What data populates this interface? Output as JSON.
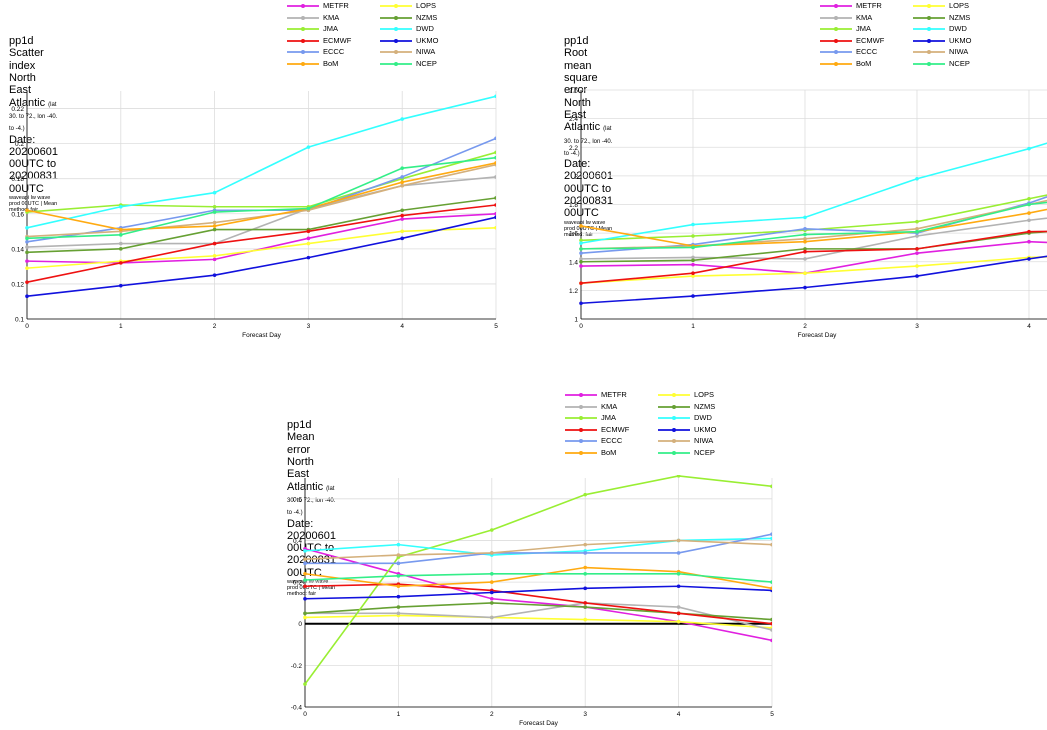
{
  "legend_series": [
    {
      "name": "METFR",
      "color": "#e020e0"
    },
    {
      "name": "LOPS",
      "color": "#ffff33"
    },
    {
      "name": "KMA",
      "color": "#b3b3b3"
    },
    {
      "name": "NZMS",
      "color": "#66a033"
    },
    {
      "name": "JMA",
      "color": "#99ee33"
    },
    {
      "name": "DWD",
      "color": "#33ffff"
    },
    {
      "name": "ECMWF",
      "color": "#ee1111"
    },
    {
      "name": "UKMO",
      "color": "#1111dd"
    },
    {
      "name": "ECCC",
      "color": "#7799ee"
    },
    {
      "name": "NIWA",
      "color": "#d4b07c"
    },
    {
      "name": "BoM",
      "color": "#ffaa11"
    },
    {
      "name": "NCEP",
      "color": "#33ee88"
    }
  ],
  "panels": [
    {
      "header": {
        "line1": "pp1d",
        "line2": "Scatter index",
        "line3_main": "North East Atlantic",
        "line3_small": "(lat 30. to 72., lon -40. to -4.)",
        "line4": "Date: 20200601 00UTC to 20200831 00UTC",
        "line5": "waveapi lw wave prod 00UTC | Mean method: fair"
      },
      "chart_data": {
        "type": "line",
        "xlabel": "Forecast Day",
        "ylabel": "",
        "x": [
          0,
          1,
          2,
          3,
          4,
          5
        ],
        "xlim": [
          0,
          5
        ],
        "ylim": [
          0.1,
          0.23
        ],
        "yticks": [
          0.1,
          0.12,
          0.14,
          0.16,
          0.18,
          0.2,
          0.22
        ],
        "ytick_labels": [
          "0.1",
          "0.12",
          "0.14",
          "0.16",
          "0.18",
          "0.2",
          "0.22"
        ],
        "xticks": [
          0,
          1,
          2,
          3,
          4,
          5
        ],
        "xtick_labels": [
          "0",
          "1",
          "2",
          "3",
          "4",
          "5"
        ],
        "grid": true,
        "series": [
          {
            "name": "METFR",
            "values": [
              0.133,
              0.132,
              0.134,
              0.146,
              0.157,
              0.16
            ]
          },
          {
            "name": "LOPS",
            "values": [
              0.129,
              0.133,
              0.136,
              0.143,
              0.15,
              0.152
            ]
          },
          {
            "name": "KMA",
            "values": [
              0.141,
              0.143,
              0.143,
              0.163,
              0.176,
              0.181
            ]
          },
          {
            "name": "NZMS",
            "values": [
              0.138,
              0.14,
              0.151,
              0.151,
              0.162,
              0.169
            ]
          },
          {
            "name": "JMA",
            "values": [
              0.161,
              0.165,
              0.164,
              0.164,
              0.18,
              0.195
            ]
          },
          {
            "name": "DWD",
            "values": [
              0.152,
              0.164,
              0.172,
              0.198,
              0.214,
              0.227
            ]
          },
          {
            "name": "ECMWF",
            "values": [
              0.121,
              0.132,
              0.143,
              0.15,
              0.159,
              0.165
            ]
          },
          {
            "name": "UKMO",
            "values": [
              0.113,
              0.119,
              0.125,
              0.135,
              0.146,
              0.158
            ]
          },
          {
            "name": "ECCC",
            "values": [
              0.144,
              0.152,
              0.162,
              0.162,
              0.181,
              0.203
            ]
          },
          {
            "name": "NIWA",
            "values": [
              0.147,
              0.15,
              0.155,
              0.162,
              0.176,
              0.188
            ]
          },
          {
            "name": "BoM",
            "values": [
              0.162,
              0.151,
              0.153,
              0.163,
              0.178,
              0.189
            ]
          },
          {
            "name": "NCEP",
            "values": [
              0.146,
              0.148,
              0.161,
              0.163,
              0.186,
              0.192
            ]
          }
        ]
      }
    },
    {
      "header": {
        "line1": "pp1d",
        "line2": "Root mean square error",
        "line3_main": "North East Atlantic",
        "line3_small": "(lat 30. to 72., lon -40. to -4.)",
        "line4": "Date: 20200601 00UTC to 20200831 00UTC",
        "line5": "waveapi lw wave prod 00UTC | Mean method: fair"
      },
      "chart_data": {
        "type": "line",
        "xlabel": "Forecast Day",
        "ylabel": "",
        "x": [
          0,
          1,
          2,
          3,
          4,
          5
        ],
        "xlim": [
          0,
          5
        ],
        "ylim": [
          1,
          2.6
        ],
        "yticks": [
          1,
          1.2,
          1.4,
          1.6,
          1.8,
          2,
          2.2,
          2.4,
          2.6
        ],
        "ytick_labels": [
          "1",
          "1.2",
          "1.4",
          "1.6",
          "1.8",
          "2",
          "2.2",
          "2.4",
          "2.6"
        ],
        "xticks": [
          0,
          1,
          2,
          3,
          4
        ],
        "xtick_labels": [
          "0",
          "1",
          "2",
          "3",
          "4"
        ],
        "grid": true,
        "series": [
          {
            "name": "METFR",
            "values": [
              1.37,
              1.38,
              1.32,
              1.46,
              1.54,
              1.51
            ]
          },
          {
            "name": "LOPS",
            "values": [
              1.25,
              1.3,
              1.32,
              1.37,
              1.43,
              1.46
            ]
          },
          {
            "name": "KMA",
            "values": [
              1.42,
              1.43,
              1.42,
              1.58,
              1.69,
              1.78
            ]
          },
          {
            "name": "NZMS",
            "values": [
              1.4,
              1.41,
              1.49,
              1.49,
              1.6,
              1.66
            ]
          },
          {
            "name": "JMA",
            "values": [
              1.55,
              1.58,
              1.62,
              1.68,
              1.84,
              2.0
            ]
          },
          {
            "name": "DWD",
            "values": [
              1.53,
              1.66,
              1.71,
              1.98,
              2.19,
              2.43
            ]
          },
          {
            "name": "ECMWF",
            "values": [
              1.25,
              1.32,
              1.47,
              1.49,
              1.61,
              1.62
            ]
          },
          {
            "name": "UKMO",
            "values": [
              1.11,
              1.16,
              1.22,
              1.3,
              1.42,
              1.53
            ]
          },
          {
            "name": "ECCC",
            "values": [
              1.46,
              1.52,
              1.63,
              1.6,
              1.81,
              2.08
            ]
          },
          {
            "name": "NIWA",
            "values": [
              1.49,
              1.51,
              1.56,
              1.63,
              1.8,
              1.97
            ]
          },
          {
            "name": "BoM",
            "values": [
              1.65,
              1.51,
              1.54,
              1.61,
              1.74,
              1.9
            ]
          },
          {
            "name": "NCEP",
            "values": [
              1.49,
              1.5,
              1.59,
              1.61,
              1.8,
              1.89
            ]
          }
        ]
      }
    },
    {
      "header": {
        "line1": "pp1d",
        "line2": "Mean error",
        "line3_main": "North East Atlantic",
        "line3_small": "(lat 30. to 72., lon -40. to -4.)",
        "line4": "Date: 20200601 00UTC to 20200831 00UTC",
        "line5": "waveapi lw wave prod 00UTC | Mean method: fair"
      },
      "chart_data": {
        "type": "line",
        "xlabel": "Forecast Day",
        "ylabel": "",
        "x": [
          0,
          1,
          2,
          3,
          4,
          5
        ],
        "xlim": [
          0,
          5
        ],
        "ylim": [
          -0.4,
          0.7
        ],
        "yticks": [
          -0.4,
          -0.2,
          0,
          0.2,
          0.4,
          0.6
        ],
        "ytick_labels": [
          "-0.4",
          "-0.2",
          "0",
          "0.2",
          "0.4",
          "0.6"
        ],
        "xticks": [
          0,
          1,
          2,
          3,
          4,
          5
        ],
        "xtick_labels": [
          "0",
          "1",
          "2",
          "3",
          "4",
          "5"
        ],
        "grid": true,
        "zero_line": true,
        "series": [
          {
            "name": "METFR",
            "values": [
              0.36,
              0.24,
              0.12,
              0.08,
              0.01,
              -0.08
            ]
          },
          {
            "name": "LOPS",
            "values": [
              0.03,
              0.04,
              0.03,
              0.02,
              0.01,
              -0.02
            ]
          },
          {
            "name": "KMA",
            "values": [
              0.05,
              0.05,
              0.03,
              0.1,
              0.08,
              -0.03
            ]
          },
          {
            "name": "NZMS",
            "values": [
              0.05,
              0.08,
              0.1,
              0.08,
              0.05,
              0.02
            ]
          },
          {
            "name": "JMA",
            "values": [
              -0.29,
              0.32,
              0.45,
              0.62,
              0.71,
              0.66
            ]
          },
          {
            "name": "DWD",
            "values": [
              0.35,
              0.38,
              0.33,
              0.35,
              0.4,
              0.41
            ]
          },
          {
            "name": "ECMWF",
            "values": [
              0.18,
              0.19,
              0.16,
              0.1,
              0.05,
              0.0
            ]
          },
          {
            "name": "UKMO",
            "values": [
              0.12,
              0.13,
              0.15,
              0.17,
              0.18,
              0.16
            ]
          },
          {
            "name": "ECCC",
            "values": [
              0.29,
              0.29,
              0.34,
              0.34,
              0.34,
              0.43
            ]
          },
          {
            "name": "NIWA",
            "values": [
              0.31,
              0.33,
              0.34,
              0.38,
              0.4,
              0.38
            ]
          },
          {
            "name": "BoM",
            "values": [
              0.24,
              0.18,
              0.2,
              0.27,
              0.25,
              0.17
            ]
          },
          {
            "name": "NCEP",
            "values": [
              0.21,
              0.23,
              0.24,
              0.24,
              0.24,
              0.2
            ]
          }
        ]
      }
    }
  ]
}
